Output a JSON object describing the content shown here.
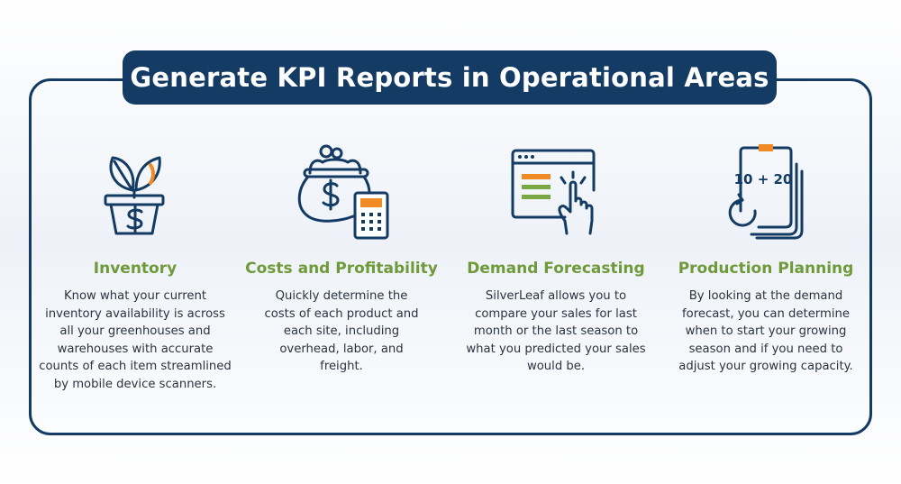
{
  "title": "Generate KPI Reports in Operational Areas",
  "colors": {
    "navy": "#133b63",
    "green": "#6f9a3a",
    "orange": "#f08a24",
    "text": "#2b3440"
  },
  "columns": [
    {
      "icon": "plant-pot-dollar-icon",
      "heading": "Inventory",
      "body": "Know what your current inventory availability is across all your greenhouses and warehouses with accurate counts of each item streamlined by mobile device scanners."
    },
    {
      "icon": "purse-calculator-icon",
      "heading": "Costs and Profitability",
      "body": "Quickly determine the costs of each product and each site, including overhead, labor, and freight."
    },
    {
      "icon": "browser-click-icon",
      "heading": "Demand Forecasting",
      "body": "SilverLeaf allows you to compare your sales for last month or the last season to what you predicted your sales would be."
    },
    {
      "icon": "clipboard-calc-icon",
      "heading": "Production Planning",
      "body": "By looking at the demand forecast, you can determine when to start your growing season and if you need to adjust your growing capacity.",
      "icon_text": "10 + 20"
    }
  ]
}
